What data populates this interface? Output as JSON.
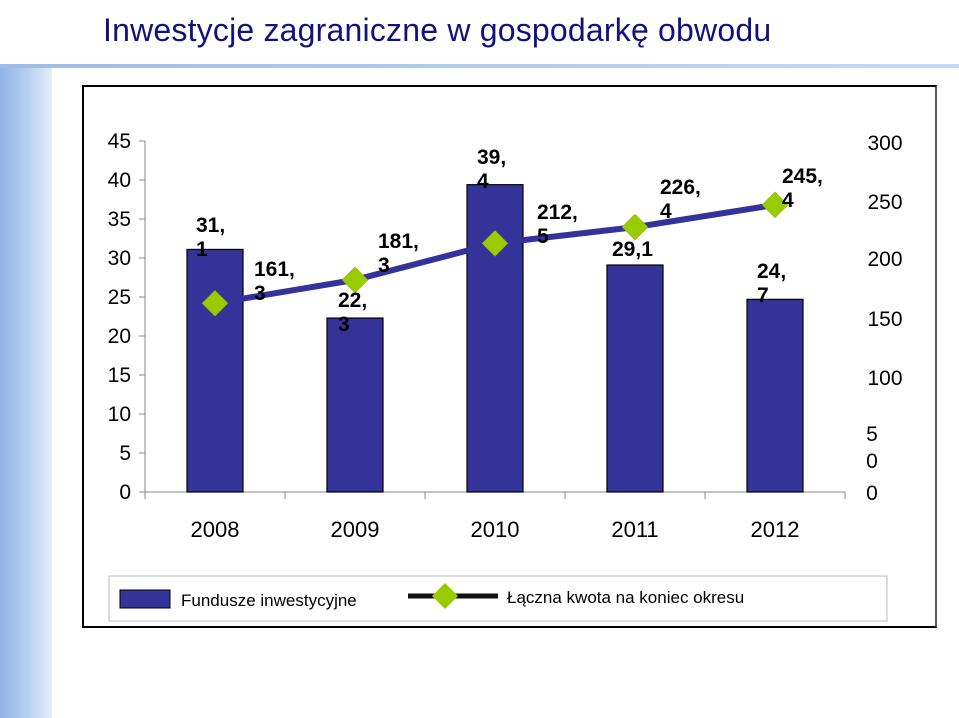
{
  "page": {
    "title": "Inwestycje zagraniczne w gospodarkę obwodu"
  },
  "chart_data": {
    "type": "bar",
    "categories": [
      "2008",
      "2009",
      "2010",
      "2011",
      "2012"
    ],
    "series": [
      {
        "name": "Fundusze inwestycyjne",
        "kind": "bar",
        "axis": "left",
        "color": "#333399",
        "values": [
          31.1,
          22.3,
          39.4,
          29.1,
          24.7
        ],
        "labels": [
          [
            "31,",
            "1"
          ],
          [
            "22,",
            "3"
          ],
          [
            "39,",
            "4"
          ],
          [
            "29,1"
          ],
          [
            "24,",
            "7"
          ]
        ]
      },
      {
        "name": "Łączna kwota na koniec okresu",
        "kind": "line",
        "axis": "right",
        "color": "#333399",
        "marker_color": "#99cc00",
        "values": [
          161.3,
          181.3,
          212.5,
          226.4,
          245.4
        ],
        "labels": [
          [
            "161,",
            "3"
          ],
          [
            "181,",
            "3"
          ],
          [
            "212,",
            "5"
          ],
          [
            "226,",
            "4"
          ],
          [
            "245,",
            "4"
          ]
        ]
      }
    ],
    "left_axis": {
      "ticks": [
        "0",
        "5",
        "10",
        "15",
        "20",
        "25",
        "30",
        "35",
        "40",
        "45"
      ],
      "ylim": [
        0,
        45
      ]
    },
    "right_axis": {
      "ticks": [
        "0",
        "50",
        "100",
        "150",
        "200",
        "250",
        "300"
      ],
      "ylim": [
        0,
        300
      ]
    },
    "grid": false,
    "legend_position": "bottom"
  }
}
